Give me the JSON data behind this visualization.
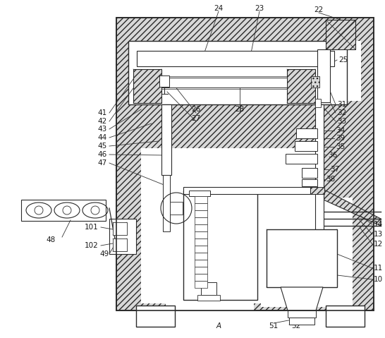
{
  "bg_color": "#ffffff",
  "lc": "#2a2a2a",
  "hatch_fc": "#d8d8d8",
  "fig_width": 5.46,
  "fig_height": 4.79,
  "dpi": 100
}
